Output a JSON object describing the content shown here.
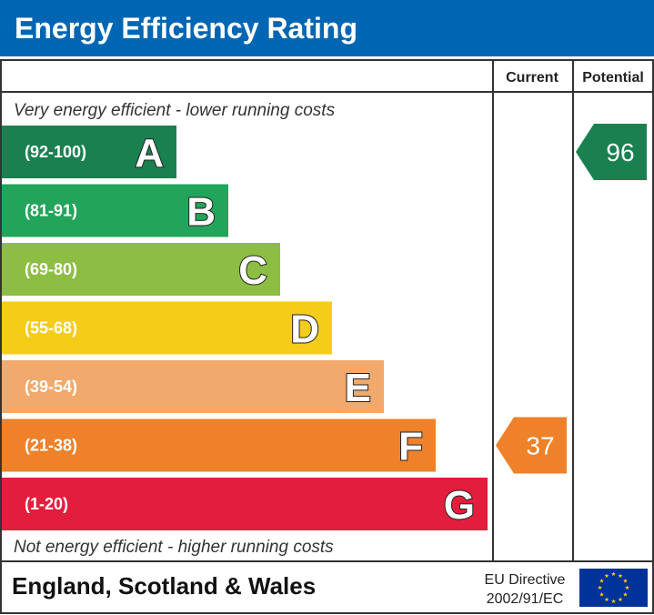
{
  "header": {
    "title": "Energy Efficiency Rating"
  },
  "columns": {
    "current": "Current",
    "potential": "Potential"
  },
  "notes": {
    "top": "Very energy efficient - lower running costs",
    "bottom": "Not energy efficient - higher running costs"
  },
  "footer": {
    "country": "England, Scotland & Wales",
    "directive_line1": "EU Directive",
    "directive_line2": "2002/91/EC"
  },
  "chart_data": {
    "type": "bar",
    "title": "Energy Efficiency Rating",
    "bands": [
      {
        "letter": "A",
        "range": "(92-100)",
        "color": "#1a8050",
        "min": 92,
        "max": 100
      },
      {
        "letter": "B",
        "range": "(81-91)",
        "color": "#22a55a",
        "min": 81,
        "max": 91
      },
      {
        "letter": "C",
        "range": "(69-80)",
        "color": "#8dbe43",
        "min": 69,
        "max": 80
      },
      {
        "letter": "D",
        "range": "(55-68)",
        "color": "#f5cc18",
        "min": 55,
        "max": 68
      },
      {
        "letter": "E",
        "range": "(39-54)",
        "color": "#f1a96c",
        "min": 39,
        "max": 54
      },
      {
        "letter": "F",
        "range": "(21-38)",
        "color": "#ee8129",
        "min": 21,
        "max": 38
      },
      {
        "letter": "G",
        "range": "(1-20)",
        "color": "#e31d3c",
        "min": 1,
        "max": 20
      }
    ],
    "current": {
      "value": 37,
      "band": "F",
      "color": "#ee8129"
    },
    "potential": {
      "value": 96,
      "band": "A",
      "color": "#1a8050"
    }
  },
  "colors": {
    "header_bg": "#0066b3",
    "eu_flag_bg": "#003399",
    "eu_star": "#ffcc00",
    "border": "#333333"
  },
  "icons": {
    "eu_flag": "eu-flag-icon"
  }
}
